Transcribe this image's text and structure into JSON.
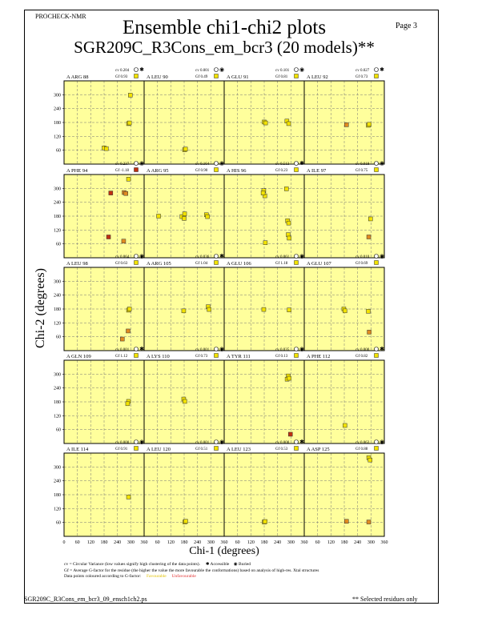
{
  "header": {
    "program": "PROCHECK-NMR",
    "page": "Page  3",
    "title": "Ensemble chi1-chi2 plots",
    "subtitle": "SGR209C_R3Cons_em_bcr3 (20 models)**"
  },
  "footer": {
    "file": "SGR209C_R3Cons_em_bcr3_09_ensch1ch2.ps",
    "note": "** Selected residues only"
  },
  "key": {
    "cv_line": "cv = Circular Variance (low values signify high clustering of the data points).",
    "accessible": "Accessible",
    "buried": "Buried",
    "gf_line": "Gf = Average G-factor for the residue (the higher the value the more favourable the conformations) based on analysis of high-res. Xtal structures",
    "colour_line": "Data points coloured according to G-factor:",
    "favourable": "Favourable",
    "unfavourable": "Unfavourable"
  },
  "chart_data": {
    "type": "scatter",
    "xlabel": "Chi-1 (degrees)",
    "ylabel": "Chi-2 (degrees)",
    "xlim": [
      0,
      360
    ],
    "ylim": [
      0,
      360
    ],
    "x_ticks": [
      "0",
      "60",
      "120",
      "180",
      "240",
      "300",
      "360"
    ],
    "y_ticks": [
      "60",
      "180",
      "300"
    ],
    "y_ticks_full": [
      "60",
      "120",
      "180",
      "240",
      "300"
    ],
    "grid": true,
    "colors": {
      "panel_bg": "#ffff9c",
      "favourable": "#f2e200",
      "unfavourable": "#c03010",
      "grid": "#777777"
    },
    "panels": [
      {
        "label": "A ARG 88",
        "cv": "0.204",
        "gf": "0.93",
        "points": [
          {
            "x": 298,
            "y": 298,
            "g": 0.2
          },
          {
            "x": 290,
            "y": 175,
            "g": 0.2
          },
          {
            "x": 294,
            "y": 178,
            "g": 0.2
          },
          {
            "x": 180,
            "y": 70,
            "g": 0.4
          },
          {
            "x": 190,
            "y": 67,
            "g": 0.3
          }
        ]
      },
      {
        "label": "A LEU 90",
        "cv": "0.001",
        "gf": "0.49",
        "points": [
          {
            "x": 182,
            "y": 62,
            "g": 0.3
          },
          {
            "x": 186,
            "y": 65,
            "g": 0.3
          }
        ]
      },
      {
        "label": "A GLU 91",
        "cv": "0.101",
        "gf": "0.81",
        "points": [
          {
            "x": 180,
            "y": 182,
            "g": 0.2
          },
          {
            "x": 186,
            "y": 178,
            "g": 0.2
          },
          {
            "x": 282,
            "y": 186,
            "g": 0.3
          },
          {
            "x": 290,
            "y": 175,
            "g": 0.2
          }
        ]
      },
      {
        "label": "A LEU 92",
        "cv": "0.027",
        "gf": "0.73",
        "points": [
          {
            "x": 190,
            "y": 170,
            "g": -0.7
          },
          {
            "x": 288,
            "y": 168,
            "g": 0.2
          },
          {
            "x": 292,
            "y": 172,
            "g": 0.2
          }
        ]
      },
      {
        "label": "A PHE 94",
        "cv": "0.237",
        "gf": "-1.18",
        "points": [
          {
            "x": 290,
            "y": 340,
            "g": 0.2
          },
          {
            "x": 210,
            "y": 280,
            "g": -1.5
          },
          {
            "x": 270,
            "y": 282,
            "g": -0.6
          },
          {
            "x": 278,
            "y": 278,
            "g": -0.6
          },
          {
            "x": 200,
            "y": 90,
            "g": -1.5
          },
          {
            "x": 268,
            "y": 72,
            "g": -0.5
          }
        ]
      },
      {
        "label": "A ARG 95",
        "cv": "0.164",
        "gf": "0.90",
        "points": [
          {
            "x": 65,
            "y": 180,
            "g": 0.3
          },
          {
            "x": 170,
            "y": 178,
            "g": 0.3
          },
          {
            "x": 180,
            "y": 170,
            "g": 0.3
          },
          {
            "x": 182,
            "y": 190,
            "g": 0.3
          },
          {
            "x": 280,
            "y": 186,
            "g": 0.2
          },
          {
            "x": 285,
            "y": 178,
            "g": 0.2
          }
        ]
      },
      {
        "label": "A HIS 96",
        "cv": "0.513",
        "gf": "0.23",
        "points": [
          {
            "x": 178,
            "y": 290,
            "g": 0.2
          },
          {
            "x": 183,
            "y": 268,
            "g": 0.2
          },
          {
            "x": 175,
            "y": 280,
            "g": 0.3
          },
          {
            "x": 280,
            "y": 298,
            "g": 0.3
          },
          {
            "x": 285,
            "y": 160,
            "g": 0.2
          },
          {
            "x": 290,
            "y": 150,
            "g": 0.2
          },
          {
            "x": 288,
            "y": 100,
            "g": 0.3
          },
          {
            "x": 292,
            "y": 85,
            "g": 0.3
          },
          {
            "x": 185,
            "y": 65,
            "g": 0.3
          }
        ]
      },
      {
        "label": "A ILE 97",
        "cv": "0.018",
        "gf": "0.75",
        "points": [
          {
            "x": 298,
            "y": 168,
            "g": 0.2
          },
          {
            "x": 290,
            "y": 90,
            "g": -0.8
          }
        ]
      },
      {
        "label": "A LEU 98",
        "cv": "0.064",
        "gf": "0.63",
        "points": [
          {
            "x": 290,
            "y": 175,
            "g": 0.2
          },
          {
            "x": 294,
            "y": 180,
            "g": 0.2
          },
          {
            "x": 288,
            "y": 85,
            "g": -0.6
          },
          {
            "x": 262,
            "y": 50,
            "g": -0.4
          }
        ]
      },
      {
        "label": "A ARG 105",
        "cv": "0.036",
        "gf": "1.04",
        "points": [
          {
            "x": 178,
            "y": 172,
            "g": 0.3
          },
          {
            "x": 288,
            "y": 190,
            "g": 0.2
          },
          {
            "x": 292,
            "y": 178,
            "g": 0.2
          }
        ]
      },
      {
        "label": "A GLU 106",
        "cv": "0.061",
        "gf": "1.18",
        "points": [
          {
            "x": 178,
            "y": 178,
            "g": 0.3
          },
          {
            "x": 292,
            "y": 176,
            "g": 0.2
          }
        ]
      },
      {
        "label": "A GLU 107",
        "cv": "0.010",
        "gf": "0.69",
        "points": [
          {
            "x": 178,
            "y": 180,
            "g": 0.2
          },
          {
            "x": 183,
            "y": 172,
            "g": 0.2
          },
          {
            "x": 288,
            "y": 170,
            "g": 0.3
          },
          {
            "x": 292,
            "y": 80,
            "g": -0.3
          }
        ]
      },
      {
        "label": "A GLN 109",
        "cv": "0.001",
        "gf": "1.12",
        "points": [
          {
            "x": 290,
            "y": 182,
            "g": 0.2
          },
          {
            "x": 286,
            "y": 172,
            "g": 0.2
          }
        ]
      },
      {
        "label": "A LYS 110",
        "cv": "0.001",
        "gf": "0.73",
        "points": [
          {
            "x": 178,
            "y": 192,
            "g": 0.2
          },
          {
            "x": 183,
            "y": 182,
            "g": 0.2
          }
        ]
      },
      {
        "label": "A TYR 111",
        "cv": "0.035",
        "gf": "0.13",
        "points": [
          {
            "x": 288,
            "y": 292,
            "g": 0.2
          },
          {
            "x": 283,
            "y": 278,
            "g": 0.2
          },
          {
            "x": 292,
            "y": 282,
            "g": 0.2
          },
          {
            "x": 298,
            "y": 40,
            "g": -1.5
          }
        ]
      },
      {
        "label": "A PHE 112",
        "cv": "0.000",
        "gf": "0.82",
        "points": [
          {
            "x": 183,
            "y": 78,
            "g": 0.2
          }
        ]
      },
      {
        "label": "A ILE 114",
        "cv": "0.000",
        "gf": "0.91",
        "points": [
          {
            "x": 290,
            "y": 170,
            "g": 0.3
          }
        ]
      },
      {
        "label": "A LEU 120",
        "cv": "0.001",
        "gf": "0.51",
        "points": [
          {
            "x": 183,
            "y": 62,
            "g": 0.2
          },
          {
            "x": 187,
            "y": 65,
            "g": 0.2
          }
        ]
      },
      {
        "label": "A LEU 123",
        "cv": "0.000",
        "gf": "0.53",
        "points": [
          {
            "x": 180,
            "y": 62,
            "g": 0.2
          },
          {
            "x": 184,
            "y": 64,
            "g": 0.2
          }
        ]
      },
      {
        "label": "A ASP 125",
        "cv": "0.063",
        "gf": "0.88",
        "points": [
          {
            "x": 290,
            "y": 340,
            "g": 0.2
          },
          {
            "x": 296,
            "y": 330,
            "g": 0.2
          },
          {
            "x": 190,
            "y": 65,
            "g": -0.3
          },
          {
            "x": 290,
            "y": 62,
            "g": -0.5
          }
        ]
      }
    ]
  }
}
